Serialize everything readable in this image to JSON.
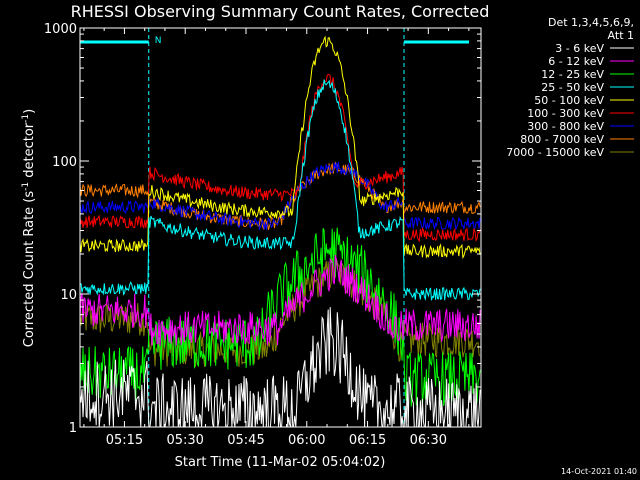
{
  "chart_data": {
    "type": "line",
    "title": "RHESSI Observing Summary Count Rates, Corrected",
    "xlabel": "Start Time (11-Mar-02 05:04:02)",
    "ylabel": "Corrected Count Rate (s",
    "ylabel_sup1": "-1",
    "ylabel_mid": " detector",
    "ylabel_sup2": "-1",
    "ylabel_end": ")",
    "y_scale": "log",
    "xlim": [
      "05:04:02",
      "06:43:00"
    ],
    "ylim": [
      1,
      1000
    ],
    "x_ticks": [
      "05:15",
      "05:30",
      "05:45",
      "06:00",
      "06:15",
      "06:30"
    ],
    "y_ticks": [
      "1",
      "10",
      "100",
      "1000"
    ],
    "legend_header": [
      "Det 1,3,4,5,6,9,",
      "Att 1"
    ],
    "legend_position": "top-right",
    "footer_date": "14-Oct-2021 01:40",
    "flag_label": "N",
    "night_boundaries": [
      "05:21:00",
      "06:24:00"
    ],
    "series": [
      {
        "name": "3 - 6 keV",
        "color": "#ffffff",
        "day_levels": [
          1.8,
          1.3
        ],
        "night_level": 1.6
      },
      {
        "name": "6 - 12 keV",
        "color": "#ff00ff",
        "day_levels": [
          7.5,
          5.8
        ],
        "night_level": 6.5
      },
      {
        "name": "12 - 25 keV",
        "color": "#00ff00",
        "day_levels": [
          2.5,
          2.3
        ],
        "night_level": 5.0
      },
      {
        "name": "25 - 50 keV",
        "color": "#00ffff",
        "day_levels": [
          11.0,
          10.0
        ],
        "night_level": 32
      },
      {
        "name": "50 - 100 keV",
        "color": "#ffff00",
        "day_levels": [
          23,
          21
        ],
        "night_level": 55
      },
      {
        "name": "100 - 300 keV",
        "color": "#ff0000",
        "day_levels": [
          35,
          28
        ],
        "night_level": 75
      },
      {
        "name": "300 - 800 keV",
        "color": "#0000ff",
        "day_levels": [
          45,
          34
        ],
        "night_level": 45
      },
      {
        "name": "800 - 7000 keV",
        "color": "#ff8000",
        "day_levels": [
          60,
          45
        ],
        "night_level": 45
      },
      {
        "name": "7000 - 15000 keV",
        "color": "#808000",
        "day_levels": [
          6.5,
          4.5
        ],
        "night_level": 4.5
      }
    ],
    "flare_peaks": [
      {
        "series": "3 - 6 keV",
        "time": "06:06:00",
        "value": 4.5
      },
      {
        "series": "6 - 12 keV",
        "time": "06:07:00",
        "value": 15
      },
      {
        "series": "12 - 25 keV",
        "time": "06:06:00",
        "value": 22
      },
      {
        "series": "25 - 50 keV",
        "time": "06:05:00",
        "value": 380
      },
      {
        "series": "50 - 100 keV",
        "time": "06:05:00",
        "value": 800
      },
      {
        "series": "100 - 300 keV",
        "time": "06:05:00",
        "value": 420
      },
      {
        "series": "300 - 800 keV",
        "time": "06:07:00",
        "value": 90
      },
      {
        "series": "800 - 7000 keV",
        "time": "06:07:00",
        "value": 88
      },
      {
        "series": "7000 - 15000 keV",
        "time": "06:07:00",
        "value": 15
      }
    ],
    "grid": false
  }
}
